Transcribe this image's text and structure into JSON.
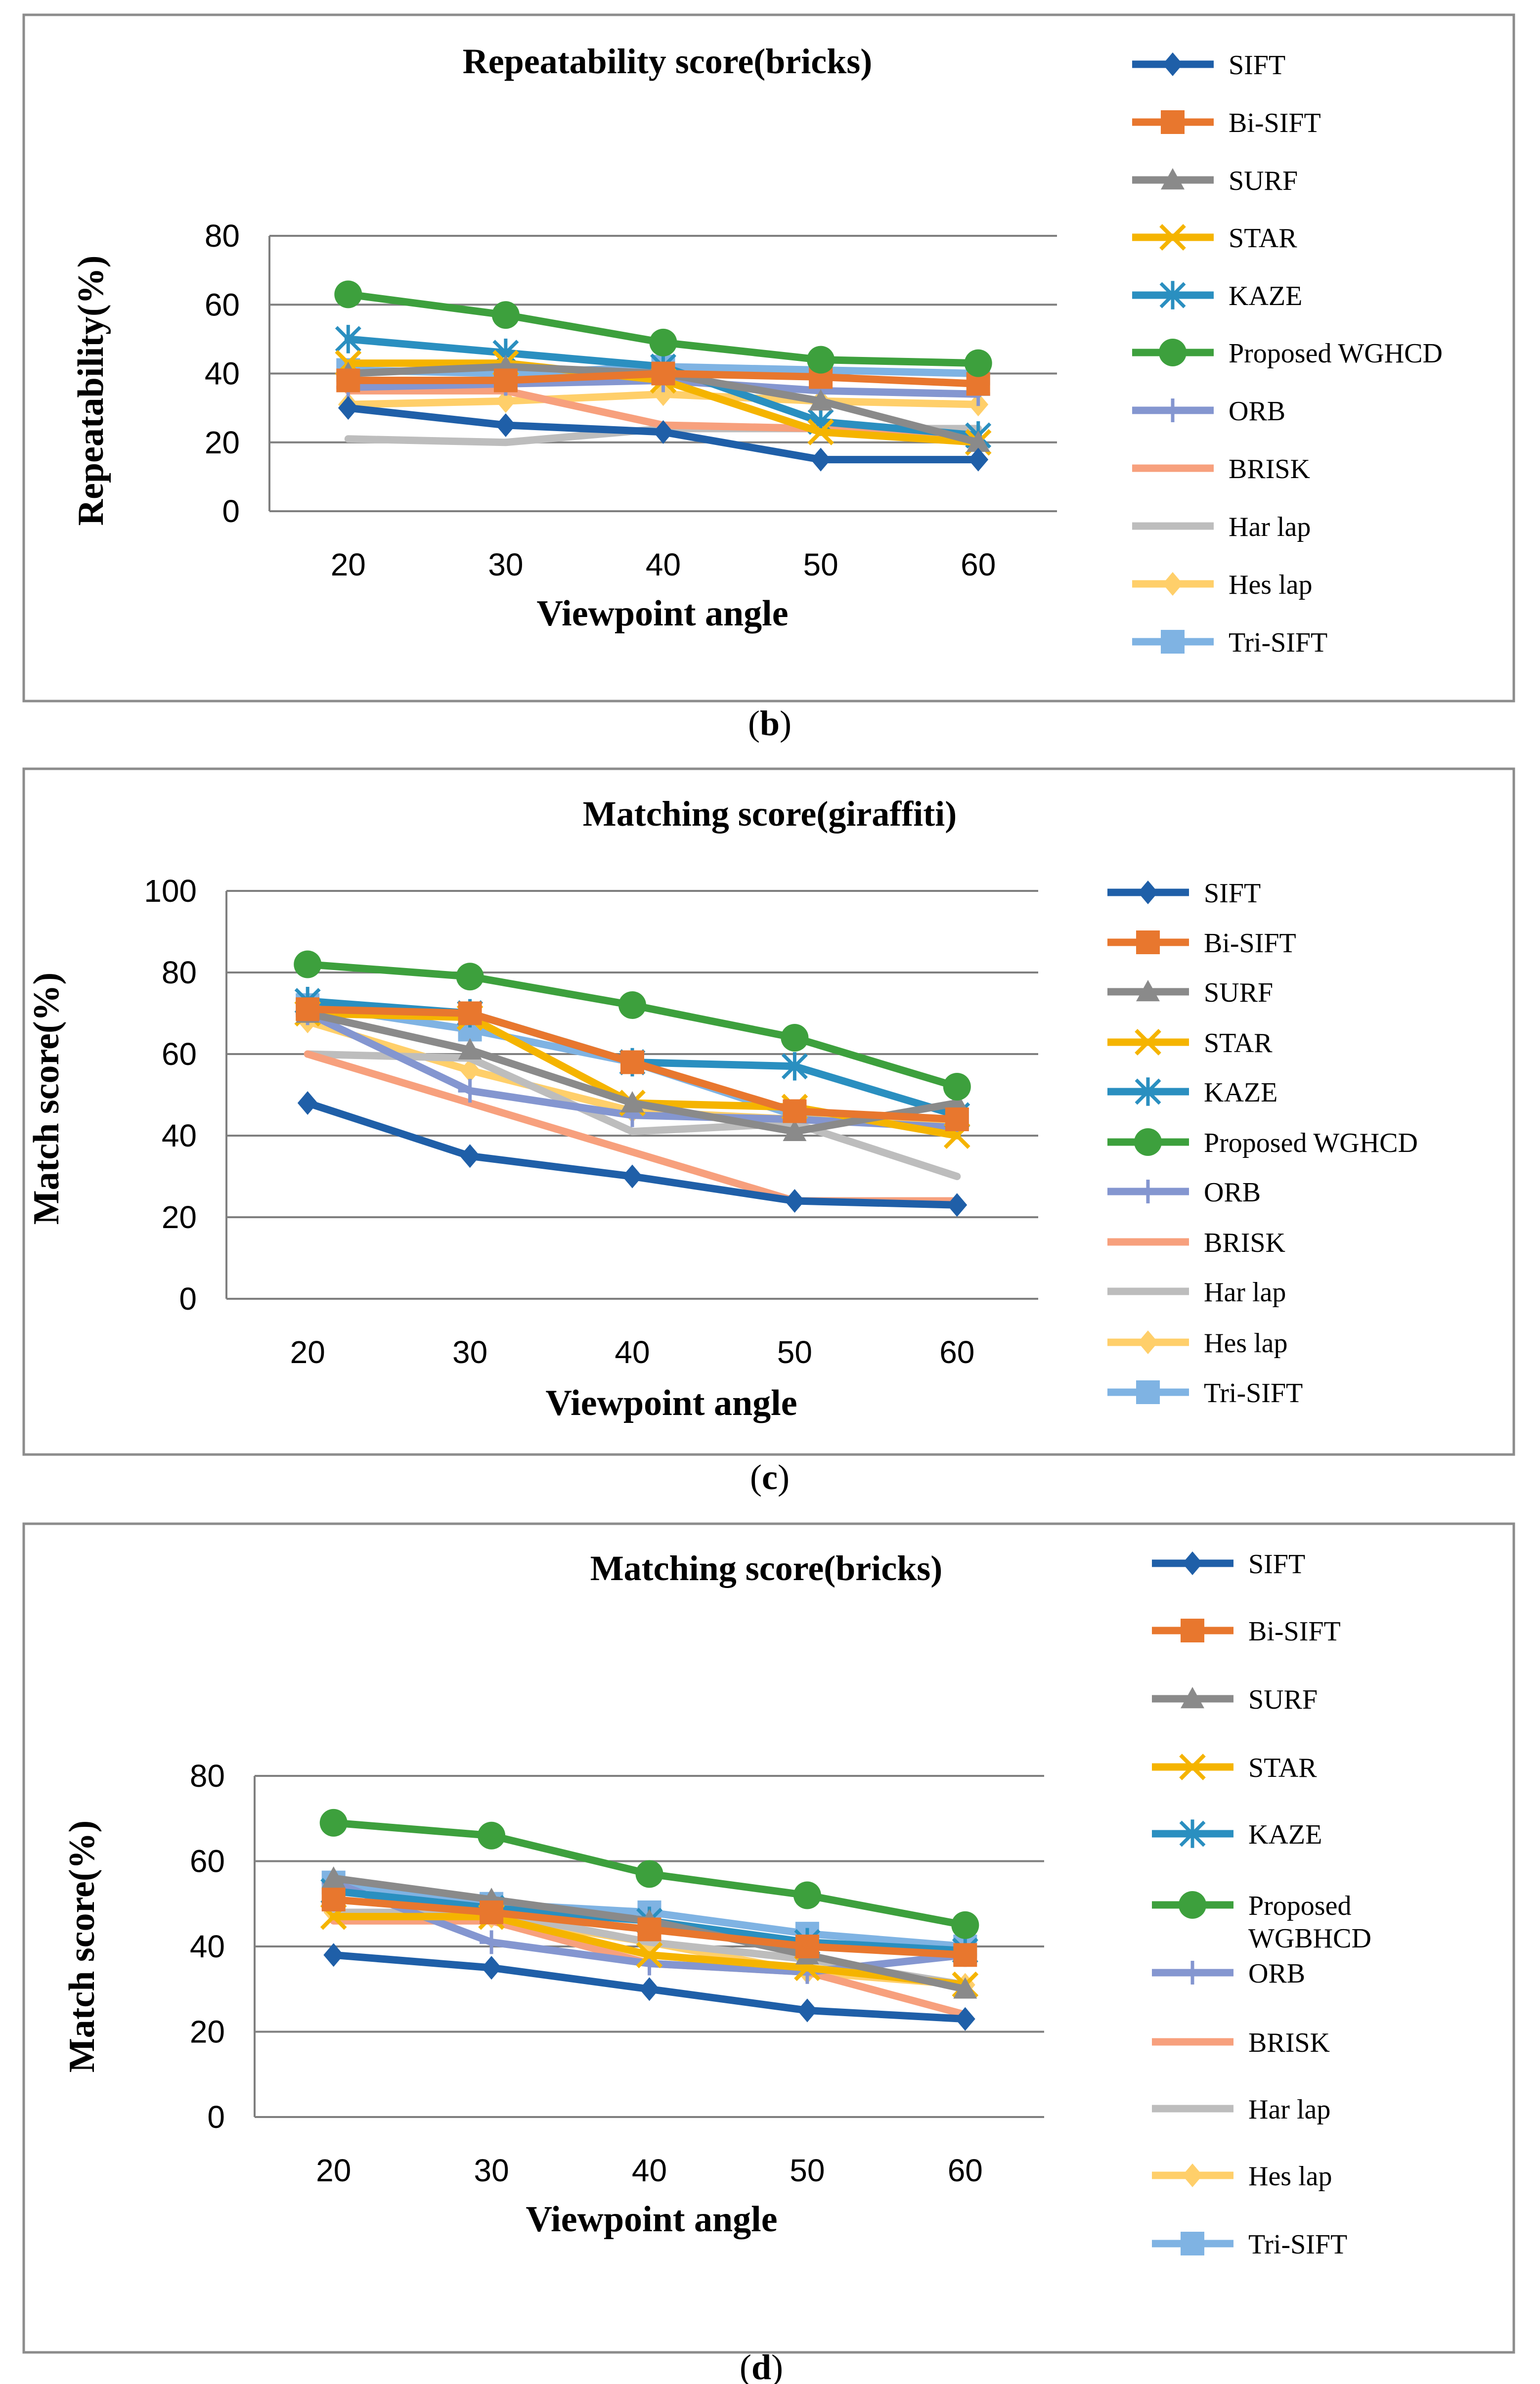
{
  "captions": [
    "(b)",
    "(c)",
    "(d)"
  ],
  "series_colors": {
    "SIFT": "#1f5fa8",
    "Bi-SIFT": "#e8772e",
    "SURF": "#8a8a8a",
    "STAR": "#f5b400",
    "KAZE": "#2a8fc0",
    "Proposed": "#3da03d",
    "ORB": "#8496d0",
    "BRISK": "#f7a07d",
    "Har lap": "#bdbdbd",
    "Hes lap": "#ffcf6a",
    "Tri-SIFT": "#7fb3e3"
  },
  "chart_data": [
    {
      "type": "line",
      "title": "Repeatability score(bricks)",
      "xlabel": "Viewpoint angle",
      "ylabel": "Repeatability(%)",
      "categories": [
        "20",
        "30",
        "40",
        "50",
        "60"
      ],
      "ylim": [
        0,
        80
      ],
      "yticks": [
        0,
        20,
        40,
        60,
        80
      ],
      "grid": true,
      "legend_position": "right",
      "series": [
        {
          "name": "SIFT",
          "marker": "diamond",
          "values": [
            30,
            25,
            23,
            15,
            15
          ]
        },
        {
          "name": "Bi-SIFT",
          "marker": "square",
          "values": [
            38,
            38,
            40,
            39,
            37
          ]
        },
        {
          "name": "SURF",
          "marker": "triangle",
          "values": [
            40,
            42,
            40,
            32,
            20
          ]
        },
        {
          "name": "STAR",
          "marker": "x",
          "values": [
            43,
            43,
            38,
            23,
            20
          ]
        },
        {
          "name": "KAZE",
          "marker": "star",
          "values": [
            50,
            46,
            42,
            26,
            22
          ]
        },
        {
          "name": "Proposed WGHCD",
          "marker": "circle",
          "values": [
            63,
            57,
            49,
            44,
            43
          ]
        },
        {
          "name": "ORB",
          "marker": "plus",
          "values": [
            36,
            37,
            38,
            35,
            34
          ]
        },
        {
          "name": "BRISK",
          "marker": "none",
          "values": [
            35,
            35,
            25,
            24,
            22
          ]
        },
        {
          "name": "Har lap",
          "marker": "none",
          "values": [
            21,
            20,
            24,
            24,
            24
          ]
        },
        {
          "name": "Hes lap",
          "marker": "diamond",
          "values": [
            31,
            32,
            34,
            32,
            31
          ]
        },
        {
          "name": "Tri-SIFT",
          "marker": "square",
          "values": [
            41,
            40,
            42,
            41,
            40
          ]
        }
      ]
    },
    {
      "type": "line",
      "title": "Matching score(giraffiti)",
      "xlabel": "Viewpoint angle",
      "ylabel": "Match score(%)",
      "categories": [
        "20",
        "30",
        "40",
        "50",
        "60"
      ],
      "ylim": [
        0,
        100
      ],
      "yticks": [
        0,
        20,
        40,
        60,
        80,
        100
      ],
      "grid": true,
      "legend_position": "right",
      "series": [
        {
          "name": "SIFT",
          "marker": "diamond",
          "values": [
            48,
            35,
            30,
            24,
            23
          ]
        },
        {
          "name": "Bi-SIFT",
          "marker": "square",
          "values": [
            71,
            70,
            58,
            46,
            44
          ]
        },
        {
          "name": "SURF",
          "marker": "triangle",
          "values": [
            70,
            61,
            48,
            41,
            48
          ]
        },
        {
          "name": "STAR",
          "marker": "x",
          "values": [
            70,
            69,
            48,
            47,
            40
          ]
        },
        {
          "name": "KAZE",
          "marker": "star",
          "values": [
            73,
            70,
            58,
            57,
            45
          ]
        },
        {
          "name": "Proposed WGHCD",
          "marker": "circle",
          "values": [
            82,
            79,
            72,
            64,
            52
          ]
        },
        {
          "name": "ORB",
          "marker": "plus",
          "values": [
            70,
            51,
            45,
            44,
            42
          ]
        },
        {
          "name": "BRISK",
          "marker": "none",
          "values": [
            60,
            48,
            36,
            24,
            24
          ]
        },
        {
          "name": "Har lap",
          "marker": "none",
          "values": [
            60,
            59,
            41,
            43,
            30
          ]
        },
        {
          "name": "Hes lap",
          "marker": "diamond",
          "values": [
            68,
            56,
            46,
            44,
            43
          ]
        },
        {
          "name": "Tri-SIFT",
          "marker": "square",
          "values": [
            72,
            66,
            58,
            45,
            44
          ]
        }
      ]
    },
    {
      "type": "line",
      "title": "Matching score(bricks)",
      "xlabel": "Viewpoint angle",
      "ylabel": "Match score(%)",
      "categories": [
        "20",
        "30",
        "40",
        "50",
        "60"
      ],
      "ylim": [
        0,
        80
      ],
      "yticks": [
        0,
        20,
        40,
        60,
        80
      ],
      "grid": true,
      "legend_position": "right",
      "series": [
        {
          "name": "SIFT",
          "marker": "diamond",
          "values": [
            38,
            35,
            30,
            25,
            23
          ]
        },
        {
          "name": "Bi-SIFT",
          "marker": "square",
          "values": [
            51,
            48,
            44,
            40,
            38
          ]
        },
        {
          "name": "SURF",
          "marker": "triangle",
          "values": [
            56,
            51,
            46,
            38,
            30
          ]
        },
        {
          "name": "STAR",
          "marker": "x",
          "values": [
            47,
            47,
            38,
            35,
            31
          ]
        },
        {
          "name": "KAZE",
          "marker": "star",
          "values": [
            53,
            49,
            46,
            41,
            39
          ]
        },
        {
          "name": "Proposed WGBHCD",
          "marker": "circle",
          "values": [
            69,
            66,
            57,
            52,
            45
          ]
        },
        {
          "name": "ORB",
          "marker": "plus",
          "values": [
            55,
            41,
            36,
            34,
            38
          ]
        },
        {
          "name": "BRISK",
          "marker": "none",
          "values": [
            46,
            46,
            36,
            34,
            24
          ]
        },
        {
          "name": "Har lap",
          "marker": "none",
          "values": [
            48,
            48,
            41,
            37,
            31
          ]
        },
        {
          "name": "Hes lap",
          "marker": "diamond",
          "values": [
            48,
            47,
            41,
            34,
            31
          ]
        },
        {
          "name": "Tri-SIFT",
          "marker": "square",
          "values": [
            55,
            50,
            48,
            43,
            40
          ]
        }
      ]
    }
  ]
}
